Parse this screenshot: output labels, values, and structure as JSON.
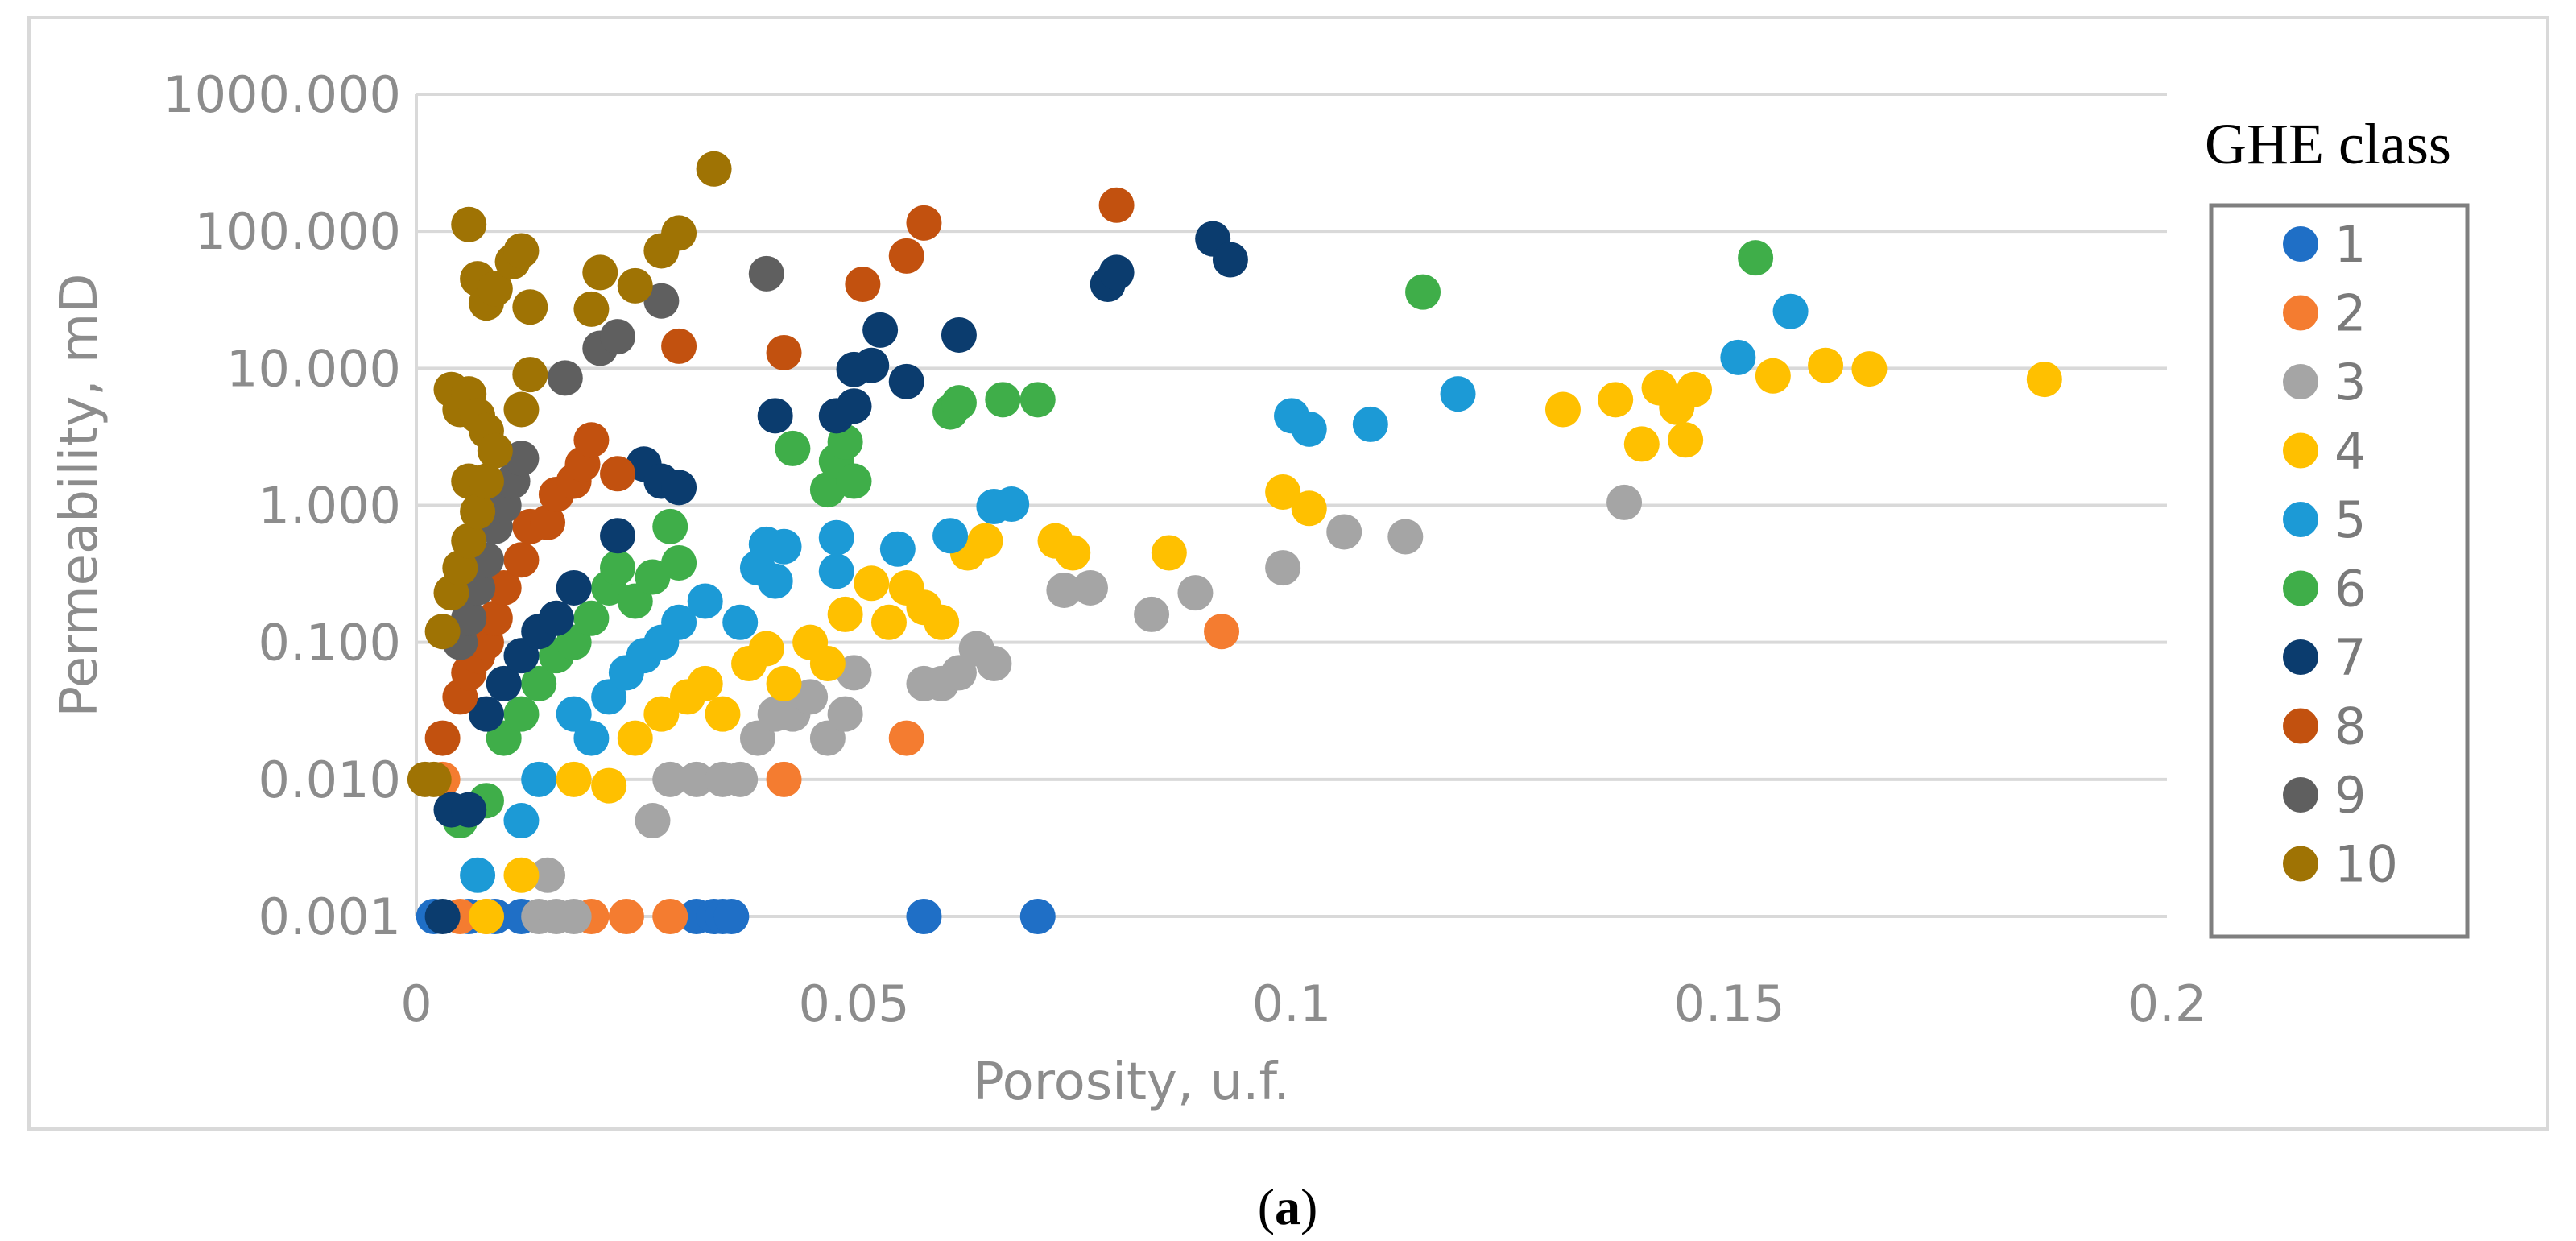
{
  "chart_data": {
    "type": "scatter",
    "xlabel": "Porosity, u.f.",
    "ylabel": "Permeability, mD",
    "y_scale": "log",
    "xlim": [
      0,
      0.2
    ],
    "ylim": [
      0.001,
      1000
    ],
    "x_ticks": [
      "0",
      "0.05",
      "0.1",
      "0.15",
      "0.2"
    ],
    "x_tick_values": [
      0,
      0.05,
      0.1,
      0.15,
      0.2
    ],
    "y_ticks": [
      "0.001",
      "0.010",
      "0.100",
      "1.000",
      "10.000",
      "100.000",
      "1000.000"
    ],
    "y_tick_values": [
      0.001,
      0.01,
      0.1,
      1,
      10,
      100,
      1000
    ],
    "gridlines": "horizontal",
    "legend_title": "GHE class",
    "legend_position": "right",
    "caption_open": "(",
    "caption_letter": "a",
    "caption_close": ")",
    "series": [
      {
        "name": "1",
        "color": "#1f6fc6",
        "points": [
          [
            0.002,
            0.001
          ],
          [
            0.006,
            0.001
          ],
          [
            0.009,
            0.001
          ],
          [
            0.012,
            0.001
          ],
          [
            0.032,
            0.001
          ],
          [
            0.034,
            0.001
          ],
          [
            0.035,
            0.001
          ],
          [
            0.036,
            0.001
          ],
          [
            0.058,
            0.001
          ],
          [
            0.071,
            0.001
          ]
        ]
      },
      {
        "name": "2",
        "color": "#f47c30",
        "points": [
          [
            0.003,
            0.01
          ],
          [
            0.005,
            0.001
          ],
          [
            0.008,
            0.001
          ],
          [
            0.02,
            0.001
          ],
          [
            0.024,
            0.001
          ],
          [
            0.029,
            0.001
          ],
          [
            0.042,
            0.01
          ],
          [
            0.056,
            0.02
          ],
          [
            0.092,
            0.12
          ]
        ]
      },
      {
        "name": "3",
        "color": "#a5a5a5",
        "points": [
          [
            0.014,
            0.001
          ],
          [
            0.015,
            0.002
          ],
          [
            0.016,
            0.001
          ],
          [
            0.018,
            0.001
          ],
          [
            0.027,
            0.005
          ],
          [
            0.029,
            0.01
          ],
          [
            0.032,
            0.01
          ],
          [
            0.035,
            0.01
          ],
          [
            0.037,
            0.01
          ],
          [
            0.039,
            0.02
          ],
          [
            0.041,
            0.03
          ],
          [
            0.043,
            0.03
          ],
          [
            0.045,
            0.04
          ],
          [
            0.047,
            0.02
          ],
          [
            0.049,
            0.03
          ],
          [
            0.05,
            0.06
          ],
          [
            0.058,
            0.05
          ],
          [
            0.06,
            0.05
          ],
          [
            0.062,
            0.06
          ],
          [
            0.064,
            0.09
          ],
          [
            0.066,
            0.07
          ],
          [
            0.074,
            0.24
          ],
          [
            0.077,
            0.25
          ],
          [
            0.084,
            0.16
          ],
          [
            0.089,
            0.23
          ],
          [
            0.099,
            0.35
          ],
          [
            0.106,
            0.64
          ],
          [
            0.113,
            0.59
          ],
          [
            0.138,
            1.05
          ]
        ]
      },
      {
        "name": "4",
        "color": "#ffc000",
        "points": [
          [
            0.008,
            0.001
          ],
          [
            0.012,
            0.002
          ],
          [
            0.018,
            0.01
          ],
          [
            0.022,
            0.009
          ],
          [
            0.025,
            0.02
          ],
          [
            0.028,
            0.03
          ],
          [
            0.031,
            0.04
          ],
          [
            0.033,
            0.05
          ],
          [
            0.035,
            0.03
          ],
          [
            0.038,
            0.07
          ],
          [
            0.04,
            0.09
          ],
          [
            0.042,
            0.05
          ],
          [
            0.045,
            0.1
          ],
          [
            0.047,
            0.07
          ],
          [
            0.049,
            0.16
          ],
          [
            0.052,
            0.27
          ],
          [
            0.054,
            0.14
          ],
          [
            0.056,
            0.25
          ],
          [
            0.058,
            0.18
          ],
          [
            0.06,
            0.14
          ],
          [
            0.063,
            0.45
          ],
          [
            0.065,
            0.55
          ],
          [
            0.073,
            0.55
          ],
          [
            0.075,
            0.45
          ],
          [
            0.086,
            0.45
          ],
          [
            0.099,
            1.25
          ],
          [
            0.102,
            0.95
          ],
          [
            0.131,
            5.0
          ],
          [
            0.137,
            5.9
          ],
          [
            0.14,
            2.8
          ],
          [
            0.142,
            7.2
          ],
          [
            0.144,
            5.2
          ],
          [
            0.145,
            3.0
          ],
          [
            0.146,
            7.0
          ],
          [
            0.155,
            8.8
          ],
          [
            0.161,
            10.5
          ],
          [
            0.166,
            9.9
          ],
          [
            0.186,
            8.3
          ]
        ]
      },
      {
        "name": "5",
        "color": "#1c9ad6",
        "points": [
          [
            0.007,
            0.002
          ],
          [
            0.012,
            0.005
          ],
          [
            0.014,
            0.01
          ],
          [
            0.018,
            0.03
          ],
          [
            0.02,
            0.02
          ],
          [
            0.022,
            0.04
          ],
          [
            0.024,
            0.06
          ],
          [
            0.026,
            0.08
          ],
          [
            0.028,
            0.1
          ],
          [
            0.03,
            0.14
          ],
          [
            0.033,
            0.2
          ],
          [
            0.037,
            0.14
          ],
          [
            0.039,
            0.35
          ],
          [
            0.04,
            0.52
          ],
          [
            0.041,
            0.28
          ],
          [
            0.042,
            0.5
          ],
          [
            0.048,
            0.33
          ],
          [
            0.048,
            0.58
          ],
          [
            0.055,
            0.48
          ],
          [
            0.061,
            0.6
          ],
          [
            0.066,
            0.98
          ],
          [
            0.068,
            1.02
          ],
          [
            0.1,
            4.5
          ],
          [
            0.102,
            3.6
          ],
          [
            0.109,
            3.9
          ],
          [
            0.119,
            6.5
          ],
          [
            0.151,
            12.0
          ],
          [
            0.157,
            26.0
          ]
        ]
      },
      {
        "name": "6",
        "color": "#3fae49",
        "points": [
          [
            0.005,
            0.005
          ],
          [
            0.008,
            0.007
          ],
          [
            0.01,
            0.02
          ],
          [
            0.012,
            0.03
          ],
          [
            0.014,
            0.05
          ],
          [
            0.016,
            0.08
          ],
          [
            0.018,
            0.1
          ],
          [
            0.02,
            0.15
          ],
          [
            0.022,
            0.25
          ],
          [
            0.023,
            0.35
          ],
          [
            0.025,
            0.2
          ],
          [
            0.027,
            0.3
          ],
          [
            0.029,
            0.7
          ],
          [
            0.03,
            0.38
          ],
          [
            0.043,
            2.6
          ],
          [
            0.047,
            1.3
          ],
          [
            0.048,
            2.1
          ],
          [
            0.049,
            2.9
          ],
          [
            0.05,
            1.5
          ],
          [
            0.061,
            4.8
          ],
          [
            0.062,
            5.6
          ],
          [
            0.067,
            5.9
          ],
          [
            0.071,
            5.9
          ],
          [
            0.115,
            36.0
          ],
          [
            0.153,
            64.0
          ]
        ]
      },
      {
        "name": "7",
        "color": "#0b3c6e",
        "points": [
          [
            0.003,
            0.001
          ],
          [
            0.004,
            0.006
          ],
          [
            0.006,
            0.006
          ],
          [
            0.008,
            0.03
          ],
          [
            0.01,
            0.05
          ],
          [
            0.012,
            0.08
          ],
          [
            0.014,
            0.12
          ],
          [
            0.016,
            0.15
          ],
          [
            0.018,
            0.25
          ],
          [
            0.023,
            0.6
          ],
          [
            0.026,
            2.0
          ],
          [
            0.028,
            1.5
          ],
          [
            0.03,
            1.35
          ],
          [
            0.041,
            4.5
          ],
          [
            0.048,
            4.5
          ],
          [
            0.05,
            5.3
          ],
          [
            0.05,
            9.8
          ],
          [
            0.052,
            10.5
          ],
          [
            0.053,
            19.0
          ],
          [
            0.056,
            8.0
          ],
          [
            0.062,
            17.5
          ],
          [
            0.079,
            41.0
          ],
          [
            0.08,
            50.0
          ],
          [
            0.091,
            88.0
          ],
          [
            0.093,
            62.0
          ]
        ]
      },
      {
        "name": "8",
        "color": "#c2510f",
        "points": [
          [
            0.003,
            0.02
          ],
          [
            0.005,
            0.04
          ],
          [
            0.006,
            0.06
          ],
          [
            0.007,
            0.08
          ],
          [
            0.008,
            0.1
          ],
          [
            0.009,
            0.15
          ],
          [
            0.01,
            0.25
          ],
          [
            0.012,
            0.4
          ],
          [
            0.013,
            0.7
          ],
          [
            0.015,
            0.75
          ],
          [
            0.016,
            1.2
          ],
          [
            0.018,
            1.5
          ],
          [
            0.019,
            2.0
          ],
          [
            0.02,
            3.0
          ],
          [
            0.023,
            1.7
          ],
          [
            0.03,
            14.5
          ],
          [
            0.042,
            13.0
          ],
          [
            0.051,
            41.0
          ],
          [
            0.056,
            66.0
          ],
          [
            0.058,
            115.0
          ],
          [
            0.08,
            155.0
          ]
        ]
      },
      {
        "name": "9",
        "color": "#5f5f5f",
        "points": [
          [
            0.005,
            0.1
          ],
          [
            0.006,
            0.15
          ],
          [
            0.007,
            0.25
          ],
          [
            0.008,
            0.4
          ],
          [
            0.009,
            0.7
          ],
          [
            0.01,
            1.0
          ],
          [
            0.011,
            1.5
          ],
          [
            0.012,
            2.2
          ],
          [
            0.017,
            8.5
          ],
          [
            0.021,
            14.0
          ],
          [
            0.023,
            17.0
          ],
          [
            0.028,
            31.0
          ],
          [
            0.04,
            49.0
          ]
        ]
      },
      {
        "name": "10",
        "color": "#9f7304",
        "points": [
          [
            0.001,
            0.01
          ],
          [
            0.002,
            0.01
          ],
          [
            0.003,
            0.12
          ],
          [
            0.004,
            0.23
          ],
          [
            0.005,
            0.35
          ],
          [
            0.006,
            0.55
          ],
          [
            0.006,
            1.5
          ],
          [
            0.007,
            0.9
          ],
          [
            0.008,
            1.5
          ],
          [
            0.004,
            7.0
          ],
          [
            0.005,
            5.0
          ],
          [
            0.006,
            6.5
          ],
          [
            0.007,
            4.5
          ],
          [
            0.008,
            3.5
          ],
          [
            0.009,
            2.5
          ],
          [
            0.006,
            112.0
          ],
          [
            0.007,
            45.0
          ],
          [
            0.008,
            30.0
          ],
          [
            0.009,
            38.0
          ],
          [
            0.011,
            60.0
          ],
          [
            0.012,
            72.0
          ],
          [
            0.013,
            28.0
          ],
          [
            0.012,
            5.0
          ],
          [
            0.013,
            9.0
          ],
          [
            0.02,
            27.0
          ],
          [
            0.021,
            50.0
          ],
          [
            0.025,
            40.0
          ],
          [
            0.028,
            72.0
          ],
          [
            0.03,
            97.0
          ],
          [
            0.034,
            285.0
          ]
        ]
      }
    ]
  }
}
